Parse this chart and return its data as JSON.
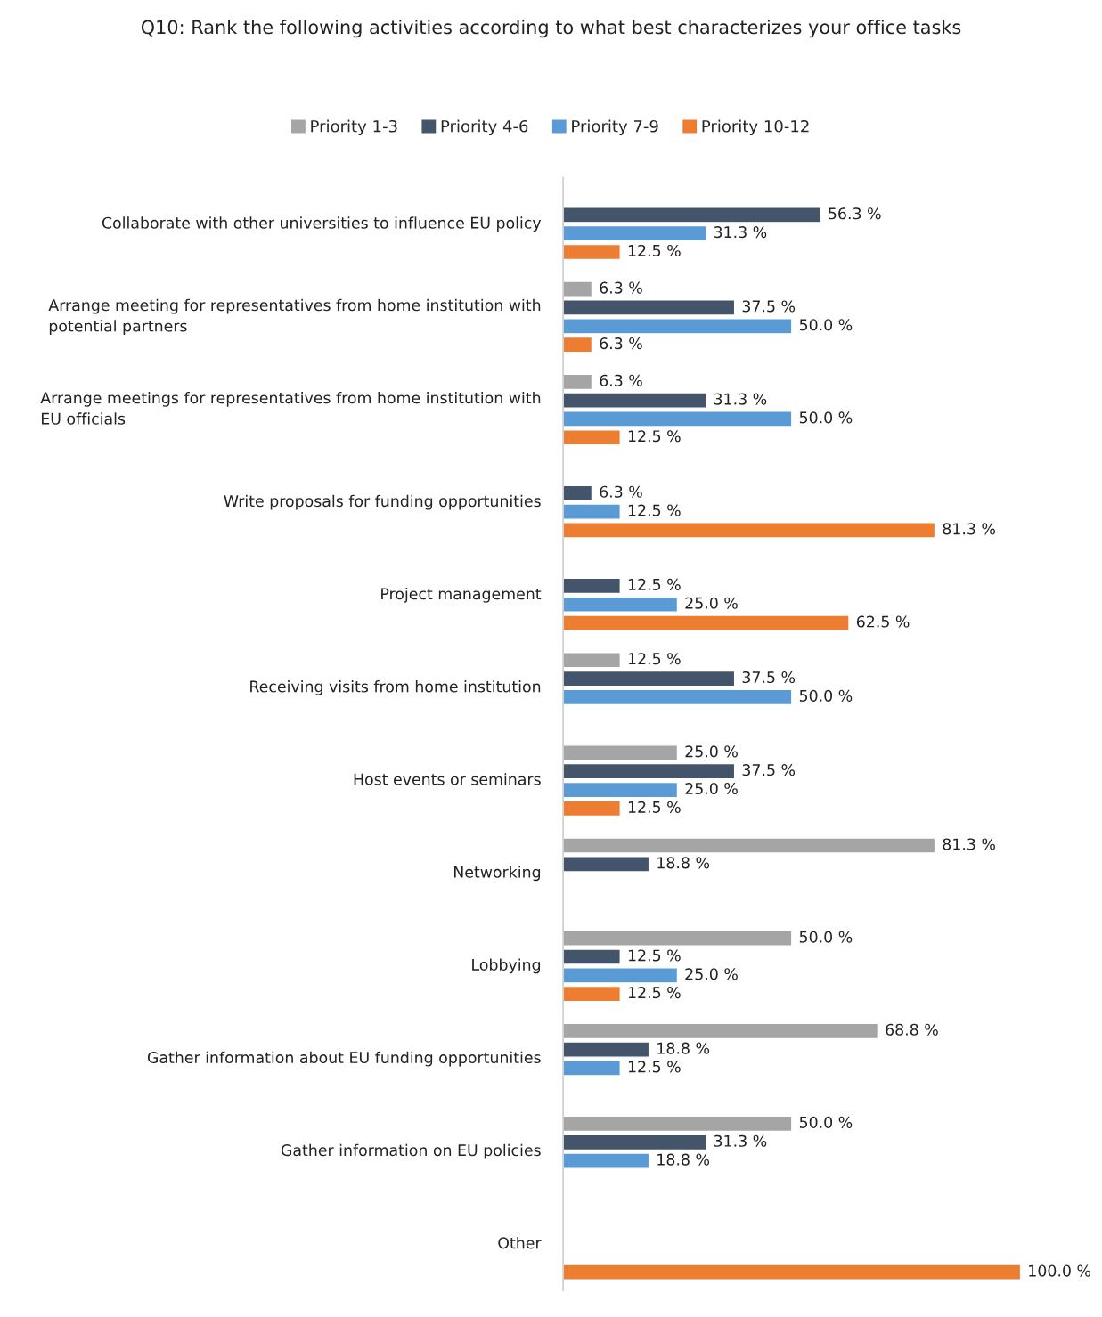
{
  "chart_data": {
    "type": "bar",
    "orientation": "horizontal",
    "title": "Q10: Rank the following activities according to what best characterizes your office tasks",
    "categories": [
      "Collaborate with other universities to influence EU policy",
      "Arrange meeting for representatives from home institution with potential partners",
      "Arrange meetings for representatives from home institution with EU officials",
      "Write proposals for funding opportunities",
      "Project management",
      "Receiving visits from home institution",
      "Host events or seminars",
      "Networking",
      "Lobbying",
      "Gather information about EU funding opportunities",
      "Gather information on EU policies",
      "Other"
    ],
    "series": [
      {
        "name": "Priority 1-3",
        "color": "#a5a5a5",
        "values": [
          null,
          6.3,
          6.3,
          null,
          null,
          12.5,
          25.0,
          81.3,
          50.0,
          68.8,
          50.0,
          null
        ],
        "value_labels": [
          null,
          "6.3 %",
          "6.3 %",
          null,
          null,
          "12.5 %",
          "25.0 %",
          "81.3 %",
          "50.0 %",
          "68.8 %",
          "50.0 %",
          null
        ]
      },
      {
        "name": "Priority 4-6",
        "color": "#44546a",
        "values": [
          56.3,
          37.5,
          31.3,
          6.3,
          12.5,
          37.5,
          37.5,
          18.8,
          12.5,
          18.8,
          31.3,
          null
        ],
        "value_labels": [
          "56.3 %",
          "37.5 %",
          "31.3 %",
          "6.3 %",
          "12.5 %",
          "37.5 %",
          "37.5 %",
          "18.8 %",
          "12.5 %",
          "18.8 %",
          "31.3 %",
          null
        ]
      },
      {
        "name": "Priority 7-9",
        "color": "#5b9bd5",
        "values": [
          31.3,
          50.0,
          50.0,
          12.5,
          25.0,
          50.0,
          25.0,
          null,
          25.0,
          12.5,
          18.8,
          null
        ],
        "value_labels": [
          "31.3 %",
          "50.0 %",
          "50.0 %",
          "12.5 %",
          "25.0 %",
          "50.0 %",
          "25.0 %",
          null,
          "25.0 %",
          "12.5 %",
          "18.8 %",
          null
        ]
      },
      {
        "name": "Priority 10-12",
        "color": "#ed7d31",
        "values": [
          12.5,
          6.3,
          12.5,
          81.3,
          62.5,
          null,
          12.5,
          null,
          12.5,
          null,
          null,
          100.0
        ],
        "value_labels": [
          "12.5 %",
          "6.3 %",
          "12.5 %",
          "81.3 %",
          "62.5 %",
          null,
          "12.5 %",
          null,
          "12.5 %",
          null,
          null,
          "100.0 %"
        ]
      }
    ],
    "tick_labels": "y",
    "legend": "top",
    "grid": false
  }
}
